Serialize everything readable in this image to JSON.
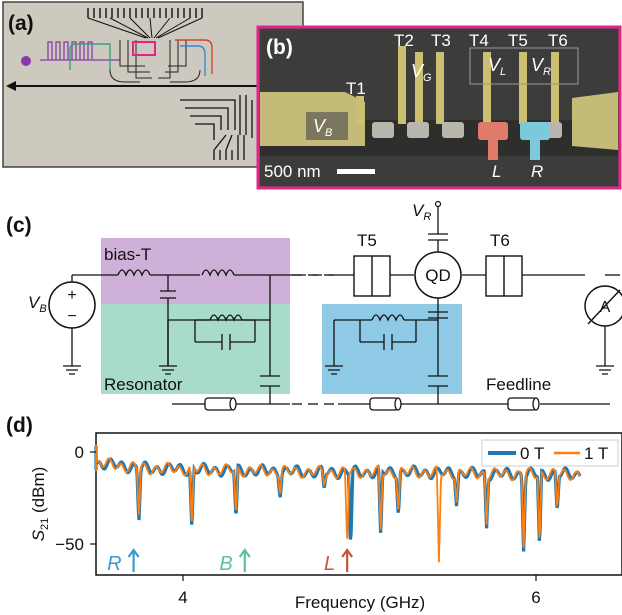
{
  "panels": {
    "a": "(a)",
    "b": "(b)",
    "c": "(c)",
    "d": "(d)"
  },
  "panel_b": {
    "gates": [
      "T1",
      "T2",
      "T3",
      "T4",
      "T5",
      "T6"
    ],
    "vg": "V",
    "vg_sub": "G",
    "vl": "V",
    "vl_sub": "L",
    "vr": "V",
    "vr_sub": "R",
    "vb": "V",
    "vb_sub": "B",
    "scale": "500 nm",
    "dot_l": "L",
    "dot_r": "R"
  },
  "panel_c": {
    "bias_t": "bias-T",
    "resonator": "Resonator",
    "feedline": "Feedline",
    "t5": "T5",
    "t6": "T6",
    "qd": "QD",
    "vr": "V",
    "vr_sub": "R",
    "vb": "V",
    "vb_sub": "B",
    "plus": "+",
    "minus": "−",
    "ammeter": "A"
  },
  "colors": {
    "bias_t_fill": "#cfb0d8",
    "resonator_fill": "#a9dcc8",
    "qd_res_fill": "#8ecae6",
    "panel_b_border": "#e0248a",
    "series_0T": "#1f77b4",
    "series_1T": "#ff7f0e",
    "arrow_R": "#3a9bd0",
    "arrow_B": "#5cc0a0",
    "arrow_L": "#c8553a"
  },
  "chart_data": {
    "type": "line",
    "xlabel": "Frequency (GHz)",
    "ylabel": "S",
    "ylabel_sub": "21",
    "ylabel_unit": " (dBm)",
    "xlim": [
      3.05,
      6.25
    ],
    "ylim": [
      -62,
      5
    ],
    "xticks": [
      4,
      6
    ],
    "yticks": [
      0,
      -50
    ],
    "baseline": [
      [
        3.05,
        -8
      ],
      [
        3.4,
        -5
      ],
      [
        3.8,
        -9
      ],
      [
        4.3,
        -10
      ],
      [
        4.8,
        -11
      ],
      [
        5.3,
        -11
      ],
      [
        5.8,
        -12
      ],
      [
        6.25,
        -12
      ]
    ],
    "dips_0T": [
      [
        3.75,
        -38
      ],
      [
        4.05,
        -42
      ],
      [
        4.3,
        -37
      ],
      [
        4.55,
        -25
      ],
      [
        4.8,
        -20
      ],
      [
        4.95,
        -52
      ],
      [
        5.12,
        -46
      ],
      [
        5.22,
        -35
      ],
      [
        5.55,
        -30
      ],
      [
        5.72,
        -42
      ],
      [
        5.93,
        -54
      ],
      [
        6.02,
        -52
      ],
      [
        6.12,
        -33
      ]
    ],
    "dips_1T": [
      [
        3.75,
        -35
      ],
      [
        4.05,
        -40
      ],
      [
        4.3,
        -35
      ],
      [
        4.55,
        -23
      ],
      [
        4.8,
        -18
      ],
      [
        4.93,
        -50
      ],
      [
        5.12,
        -44
      ],
      [
        5.22,
        -33
      ],
      [
        5.45,
        -60
      ],
      [
        5.55,
        -28
      ],
      [
        5.72,
        -40
      ],
      [
        5.93,
        -52
      ],
      [
        6.02,
        -50
      ],
      [
        6.12,
        -31
      ]
    ],
    "legend": [
      {
        "name": "0 T",
        "color": "#1f77b4"
      },
      {
        "name": "1 T",
        "color": "#ff7f0e"
      }
    ],
    "legend_position": "top-right",
    "annotations": [
      {
        "text": "R",
        "x": 3.72,
        "color": "#3a9bd0"
      },
      {
        "text": "B",
        "x": 4.35,
        "color": "#5cc0a0"
      },
      {
        "text": "L",
        "x": 4.93,
        "color": "#c8553a"
      }
    ]
  }
}
